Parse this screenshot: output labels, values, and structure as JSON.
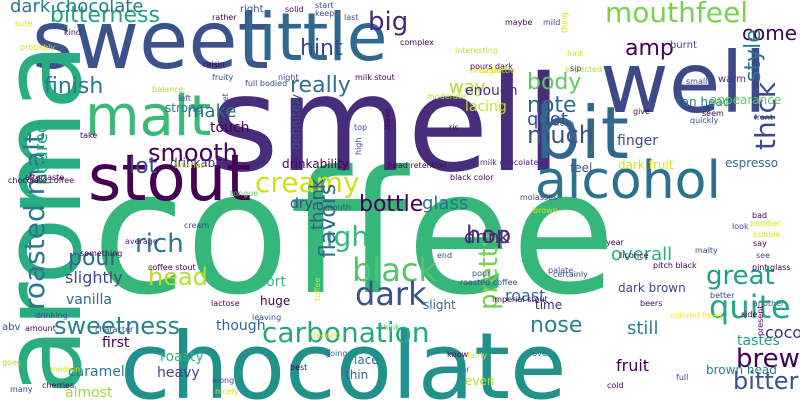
{
  "palette": {
    "purple": "#440154",
    "indigo": "#472d7b",
    "blue": "#3b528b",
    "steel": "#2c728e",
    "teal": "#21918c",
    "sea": "#28ae80",
    "green": "#5ec962",
    "lime": "#addc30",
    "yellow": "#fde725"
  },
  "words": [
    {
      "text": "coffee",
      "color": "#35b779"
    },
    {
      "text": "smell",
      "color": "#472d7b"
    },
    {
      "text": "chocolate",
      "color": "#21918c"
    },
    {
      "text": "sweet",
      "color": "#3b528b"
    },
    {
      "text": "aroma",
      "color": "#27ad81"
    },
    {
      "text": "little",
      "color": "#31688e"
    },
    {
      "text": "well",
      "color": "#3e4989"
    },
    {
      "text": "stout",
      "color": "#440154"
    },
    {
      "text": "bit",
      "color": "#31688e"
    },
    {
      "text": "malt",
      "color": "#3aba76"
    },
    {
      "text": "alcohol",
      "color": "#2c728e"
    },
    {
      "text": "roasted malt",
      "color": "#2a788e"
    },
    {
      "text": "carbonation",
      "color": "#22a884"
    },
    {
      "text": "creamy",
      "color": "#d0e11c"
    },
    {
      "text": "black",
      "color": "#52c569"
    },
    {
      "text": "mouthfeel",
      "color": "#7ad151"
    },
    {
      "text": "head",
      "color": "#b5de2b"
    },
    {
      "text": "smooth",
      "color": "#440154"
    },
    {
      "text": "rich",
      "color": "#2a788e"
    },
    {
      "text": "light",
      "color": "#35b779"
    },
    {
      "text": "dark",
      "color": "#3b528b"
    },
    {
      "text": "sweetness",
      "color": "#26828e"
    },
    {
      "text": "quite",
      "color": "#22a884"
    },
    {
      "text": "great",
      "color": "#1f9e89"
    },
    {
      "text": "brew",
      "color": "#440154"
    },
    {
      "text": "bitter",
      "color": "#3b528b"
    },
    {
      "text": "thick",
      "color": "#3e4989"
    },
    {
      "text": "pretty",
      "color": "#7ad151"
    },
    {
      "text": "flavors",
      "color": "#31688e"
    },
    {
      "text": "really",
      "color": "#2c728e"
    },
    {
      "text": "finish",
      "color": "#2a788e"
    },
    {
      "text": "much",
      "color": "#3b528b"
    },
    {
      "text": "bottle",
      "color": "#440154"
    },
    {
      "text": "hop",
      "color": "#482878"
    },
    {
      "text": "note",
      "color": "#31688e"
    },
    {
      "text": "nose",
      "color": "#26828e"
    },
    {
      "text": "big",
      "color": "#482878"
    },
    {
      "text": "hint",
      "color": "#3e4989"
    },
    {
      "text": "amp",
      "color": "#440154"
    },
    {
      "text": "body",
      "color": "#5ec962"
    },
    {
      "text": "bitterness",
      "color": "#20a386"
    },
    {
      "text": "pour",
      "color": "#31688e"
    },
    {
      "text": "poured",
      "color": "#25ac82"
    },
    {
      "text": "lot",
      "color": "#3e4989"
    },
    {
      "text": "make",
      "color": "#2c728e"
    },
    {
      "text": "quot",
      "color": "#39558c"
    },
    {
      "text": "still",
      "color": "#26828e"
    },
    {
      "text": "overall",
      "color": "#29af7f"
    },
    {
      "text": "glass",
      "color": "#2c728e"
    },
    {
      "text": "thank",
      "color": "#3b528b"
    },
    {
      "text": "come",
      "color": "#440154"
    },
    {
      "text": "style",
      "color": "#2a788e"
    },
    {
      "text": "dark chocolate",
      "color": "#2a788e"
    },
    {
      "text": "drink",
      "color": "#482878"
    },
    {
      "text": "way",
      "color": "#addc30"
    },
    {
      "text": "cocoa",
      "color": "#472d7b"
    },
    {
      "text": "slightly",
      "color": "#3e4989"
    },
    {
      "text": "vanilla",
      "color": "#31688e"
    },
    {
      "text": "tastes",
      "color": "#1f9e89"
    },
    {
      "text": "roasty",
      "color": "#35b779"
    },
    {
      "text": "almost",
      "color": "#9fda3a"
    },
    {
      "text": "roast",
      "color": "#2c728e"
    },
    {
      "text": "fruit",
      "color": "#440154"
    },
    {
      "text": "heavy",
      "color": "#3e4989"
    },
    {
      "text": "though",
      "color": "#31688e"
    },
    {
      "text": "short",
      "color": "#35b779"
    },
    {
      "text": "first",
      "color": "#440154"
    },
    {
      "text": "caramel",
      "color": "#2a788e"
    },
    {
      "text": "dry",
      "color": "#3e4989"
    },
    {
      "text": "lacing",
      "color": "#bddf26"
    },
    {
      "text": "enough",
      "color": "#472d7b"
    },
    {
      "text": "finger",
      "color": "#3e4989"
    },
    {
      "text": "touch",
      "color": "#440154"
    },
    {
      "text": "drinkable",
      "color": "#482878"
    },
    {
      "text": "drinkability",
      "color": "#440154"
    },
    {
      "text": "strong",
      "color": "#2a788e"
    },
    {
      "text": "definitely",
      "color": "#3b528b"
    },
    {
      "text": "tan head",
      "color": "#2a788e"
    },
    {
      "text": "appearance",
      "color": "#5ec962"
    },
    {
      "text": "warm",
      "color": "#472d7b"
    },
    {
      "text": "burnt",
      "color": "#3e4989"
    },
    {
      "text": "espresso",
      "color": "#31688e"
    },
    {
      "text": "dark fruit",
      "color": "#d8e219"
    },
    {
      "text": "feel",
      "color": "#3b528b"
    },
    {
      "text": "dark brown",
      "color": "#3e4989"
    },
    {
      "text": "brown head",
      "color": "#26828e"
    },
    {
      "text": "slight",
      "color": "#31688e"
    },
    {
      "text": "time",
      "color": "#482878"
    },
    {
      "text": "lace",
      "color": "#2c728e"
    },
    {
      "text": "thin",
      "color": "#31688e"
    },
    {
      "text": "huge",
      "color": "#440154"
    },
    {
      "text": "even",
      "color": "#b5de2b"
    },
    {
      "text": "abv",
      "color": "#3e4989"
    },
    {
      "text": "right",
      "color": "#3e4989"
    },
    {
      "text": "full bodied",
      "color": "#3e4989"
    },
    {
      "text": "milk stout",
      "color": "#440154"
    },
    {
      "text": "coffee stout",
      "color": "#440154"
    },
    {
      "text": "chocolate coffee",
      "color": "#440154"
    },
    {
      "text": "milk chocolate",
      "color": "#482878"
    },
    {
      "text": "head retention",
      "color": "#440154"
    },
    {
      "text": "black color",
      "color": "#440154"
    },
    {
      "text": "pitch black",
      "color": "#440154"
    },
    {
      "text": "imperial stout",
      "color": "#440154"
    },
    {
      "text": "pint glass",
      "color": "#440154"
    },
    {
      "text": "colored head",
      "color": "#fde725"
    },
    {
      "text": "beers",
      "color": "#440154"
    },
    {
      "text": "another",
      "color": "#31688e"
    },
    {
      "text": "licorice",
      "color": "#440154"
    },
    {
      "text": "molasses",
      "color": "#3e4989"
    },
    {
      "text": "raisin",
      "color": "#440154"
    },
    {
      "text": "fruity",
      "color": "#3e4989"
    },
    {
      "text": "palate",
      "color": "#3e4989"
    },
    {
      "text": "mouth",
      "color": "#3e4989"
    },
    {
      "text": "thought",
      "color": "#fde725"
    },
    {
      "text": "interesting",
      "color": "#c2df23"
    },
    {
      "text": "complex",
      "color": "#440154"
    },
    {
      "text": "pours dark",
      "color": "#440154"
    },
    {
      "text": "expected",
      "color": "#b5de2b"
    },
    {
      "text": "medium",
      "color": "#d8e219"
    },
    {
      "text": "cherries",
      "color": "#440154"
    },
    {
      "text": "aftertaste",
      "color": "#440154"
    },
    {
      "text": "character",
      "color": "#3e4989"
    },
    {
      "text": "finishes",
      "color": "#b5de2b"
    },
    {
      "text": "tongue",
      "color": "#5ec962"
    },
    {
      "text": "cream",
      "color": "#3e4989"
    },
    {
      "text": "average",
      "color": "#482878"
    },
    {
      "text": "lactose",
      "color": "#440154"
    },
    {
      "text": "leaving",
      "color": "#3e4989"
    },
    {
      "text": "decent",
      "color": "#d8e219"
    },
    {
      "text": "think",
      "color": "#5ec962"
    },
    {
      "text": "going",
      "color": "#31688e"
    },
    {
      "text": "know",
      "color": "#440154"
    },
    {
      "text": "color",
      "color": "#26828e"
    },
    {
      "text": "fairly",
      "color": "#d8e219"
    },
    {
      "text": "love",
      "color": "#2c728e"
    },
    {
      "text": "cold",
      "color": "#440154"
    },
    {
      "text": "full",
      "color": "#3e4989"
    },
    {
      "text": "along",
      "color": "#3e4989"
    },
    {
      "text": "nicely",
      "color": "#d8e219"
    },
    {
      "text": "best",
      "color": "#440154"
    },
    {
      "text": "many",
      "color": "#3e4989"
    },
    {
      "text": "goes",
      "color": "#b5de2b"
    },
    {
      "text": "drinking",
      "color": "#3e4989"
    },
    {
      "text": "amount",
      "color": "#440154"
    },
    {
      "text": "something",
      "color": "#440154"
    },
    {
      "text": "take",
      "color": "#440154"
    },
    {
      "text": "sure",
      "color": "#d8e219"
    },
    {
      "text": "probably",
      "color": "#d8e219"
    },
    {
      "text": "kind",
      "color": "#440154"
    },
    {
      "text": "rather",
      "color": "#440154"
    },
    {
      "text": "solid",
      "color": "#440154"
    },
    {
      "text": "start",
      "color": "#3e4989"
    },
    {
      "text": "keep",
      "color": "#3e4989"
    },
    {
      "text": "last",
      "color": "#3e4989"
    },
    {
      "text": "maybe",
      "color": "#440154"
    },
    {
      "text": "mild",
      "color": "#3e4989"
    },
    {
      "text": "thing",
      "color": "#d8e219"
    },
    {
      "text": "hint",
      "color": "#d8e219"
    },
    {
      "text": "sip",
      "color": "#3e4989"
    },
    {
      "text": "small",
      "color": "#3e4989"
    },
    {
      "text": "seem",
      "color": "#440154"
    },
    {
      "text": "front",
      "color": "#3e4989"
    },
    {
      "text": "quickly",
      "color": "#3e4989"
    },
    {
      "text": "give",
      "color": "#440154"
    },
    {
      "text": "fresh",
      "color": "#3e4989"
    },
    {
      "text": "moderate",
      "color": "#b5de2b"
    },
    {
      "text": "ris",
      "color": "#440154"
    },
    {
      "text": "leave",
      "color": "#440154"
    },
    {
      "text": "top",
      "color": "#3e4989"
    },
    {
      "text": "high",
      "color": "#3e4989"
    },
    {
      "text": "balance",
      "color": "#b5de2b"
    },
    {
      "text": "left",
      "color": "#3e4989"
    },
    {
      "text": "yet",
      "color": "#3e4989"
    },
    {
      "text": "night",
      "color": "#3e4989"
    },
    {
      "text": "brown",
      "color": "#d8e219"
    },
    {
      "text": "bubble",
      "color": "#d8e219"
    },
    {
      "text": "say",
      "color": "#440154"
    },
    {
      "text": "see",
      "color": "#3e4989"
    },
    {
      "text": "bad",
      "color": "#440154"
    },
    {
      "text": "look",
      "color": "#3e4989"
    },
    {
      "text": "malty",
      "color": "#3e4989"
    },
    {
      "text": "year",
      "color": "#440154"
    },
    {
      "text": "certainly",
      "color": "#3e4989"
    },
    {
      "text": "better",
      "color": "#3e4989"
    },
    {
      "text": "side",
      "color": "#440154"
    },
    {
      "text": "present",
      "color": "#440154"
    },
    {
      "text": "bomber",
      "color": "#d8e219"
    },
    {
      "text": "toffee",
      "color": "#d8e219"
    },
    {
      "text": "end",
      "color": "#3e4989"
    },
    {
      "text": "oz bottle",
      "color": "#d8e219"
    },
    {
      "text": "roasted coffee",
      "color": "#3e4989"
    },
    {
      "text": "pour",
      "color": "#3e4989"
    },
    {
      "text": "bit",
      "color": "#3e4989"
    },
    {
      "text": "mr",
      "color": "#b5de2b"
    },
    {
      "text": "ill",
      "color": "#b5de2b"
    }
  ]
}
